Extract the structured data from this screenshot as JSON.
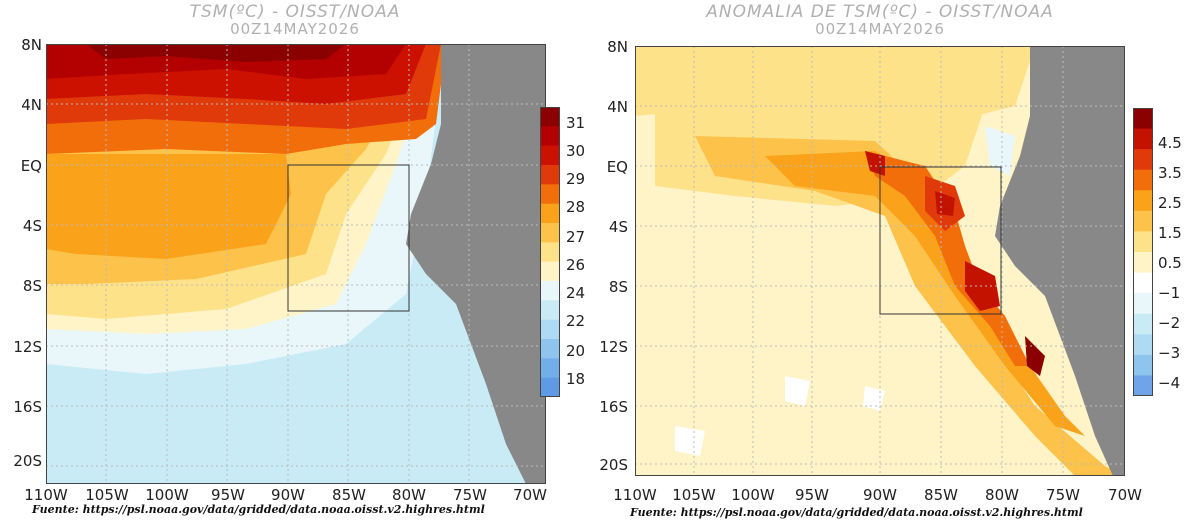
{
  "panels": [
    {
      "title": "TSM(ºC) - OISST/NOAA",
      "subtitle": "00Z14MAY2026",
      "lat_labels": [
        "8N",
        "4N",
        "EQ",
        "4S",
        "8S",
        "12S",
        "16S",
        "20S"
      ],
      "lon_labels": [
        "110W",
        "105W",
        "100W",
        "95W",
        "90W",
        "85W",
        "80W",
        "75W",
        "70W"
      ],
      "colorbar_labels": [
        "31",
        "30",
        "29",
        "28",
        "27",
        "26",
        "24",
        "22",
        "20",
        "18"
      ],
      "colorbar_colors": [
        "#8b0000",
        "#b30000",
        "#cc1100",
        "#e03a0a",
        "#f26e0a",
        "#f9a21a",
        "#fcc24a",
        "#fde28a",
        "#fef4c8",
        "#e9f7fa",
        "#c9ebf5",
        "#aedaf3",
        "#8fc4ee",
        "#72aeea",
        "#5f9ae6"
      ],
      "source": "Fuente: https://psl.noaa.gov/data/gridded/data.noaa.oisst.v2.highres.html"
    },
    {
      "title": "ANOMALIA DE TSM(ºC) - OISST/NOAA",
      "subtitle": "00Z14MAY2026",
      "lat_labels": [
        "8N",
        "4N",
        "EQ",
        "4S",
        "8S",
        "12S",
        "16S",
        "20S"
      ],
      "lon_labels": [
        "110W",
        "105W",
        "100W",
        "95W",
        "90W",
        "85W",
        "80W",
        "75W",
        "70W"
      ],
      "colorbar_labels": [
        "4.5",
        "3.5",
        "2.5",
        "1.5",
        "0.5",
        "−1",
        "−2",
        "−3",
        "−4"
      ],
      "colorbar_colors": [
        "#8b0000",
        "#c41200",
        "#e03a0a",
        "#f26e0a",
        "#f9a21a",
        "#fcc24a",
        "#fde28a",
        "#fef4c8",
        "#ffffff",
        "#e9f7fa",
        "#c9ebf5",
        "#aedaf3",
        "#8fc4ee",
        "#6fa4ea"
      ],
      "source": "Fuente: https://psl.noaa.gov/data/gridded/data.noaa.oisst.v2.highres.html"
    }
  ]
}
